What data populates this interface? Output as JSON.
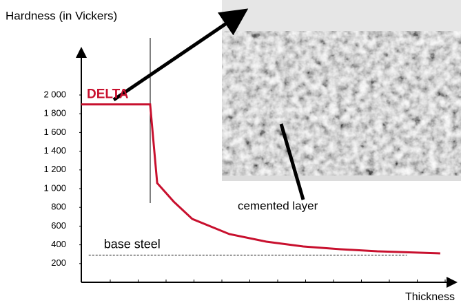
{
  "chart_data": {
    "type": "line",
    "y_label": "Hardness (in Vickers)",
    "x_label": "Thickness",
    "annotation": "cemented layer",
    "xlim": [
      0,
      10
    ],
    "ylim": [
      0,
      2500
    ],
    "yticks": [
      200,
      400,
      600,
      800,
      {
        "value": 1000,
        "label": "1 000"
      },
      {
        "value": 1200,
        "label": "1 200"
      },
      {
        "value": 1400,
        "label": "1 400"
      },
      {
        "value": 1600,
        "label": "1 600"
      },
      {
        "value": 1800,
        "label": "1 800"
      },
      {
        "value": 2000,
        "label": "2 000"
      }
    ],
    "series": [
      {
        "name": "DELTA",
        "color": "#c8102e",
        "dashed": false,
        "x": [
          0,
          1.86,
          2.05,
          2.5,
          3,
          4,
          5,
          6,
          7,
          8,
          9.7
        ],
        "values": [
          1900,
          1900,
          1060,
          860,
          676,
          515,
          434,
          382,
          353,
          331,
          309
        ]
      },
      {
        "name": "base steel",
        "color": "#000000",
        "dashed": true,
        "x": [
          0.2,
          8.8
        ],
        "values": [
          290,
          290
        ]
      }
    ]
  }
}
